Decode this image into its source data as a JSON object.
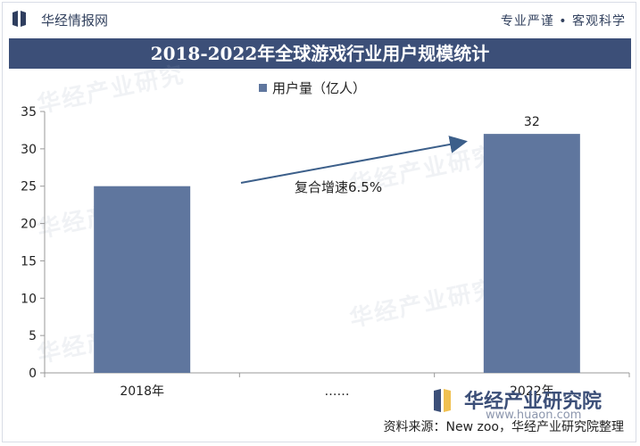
{
  "header": {
    "brand": "华经情报网",
    "slogan": "专业严谨 • 客观科学",
    "title": "2018-2022年全球游戏行业用户规模统计"
  },
  "colors": {
    "bar": "#5f769e",
    "title_band": "#3c4f78",
    "arrow": "#3c5f8a"
  },
  "chart_data": {
    "type": "bar",
    "title": "2018-2022年全球游戏行业用户规模统计",
    "categories": [
      "2018年",
      "……",
      "2022年"
    ],
    "series": [
      {
        "name": "用户量（亿人）",
        "values": [
          25,
          null,
          32
        ]
      }
    ],
    "data_labels": [
      "",
      "",
      "32"
    ],
    "y_ticks": [
      0,
      5,
      10,
      15,
      20,
      25,
      30,
      35
    ],
    "ylim": [
      0,
      35
    ],
    "legend": "top-center",
    "grid": false,
    "annotation": "复合增速6.5%"
  },
  "footer": {
    "brand": "华经产业研究院",
    "url": "www.huaon.com",
    "source": "资料来源：New zoo，华经产业研究院整理"
  },
  "watermark_text": "华经产业研究"
}
